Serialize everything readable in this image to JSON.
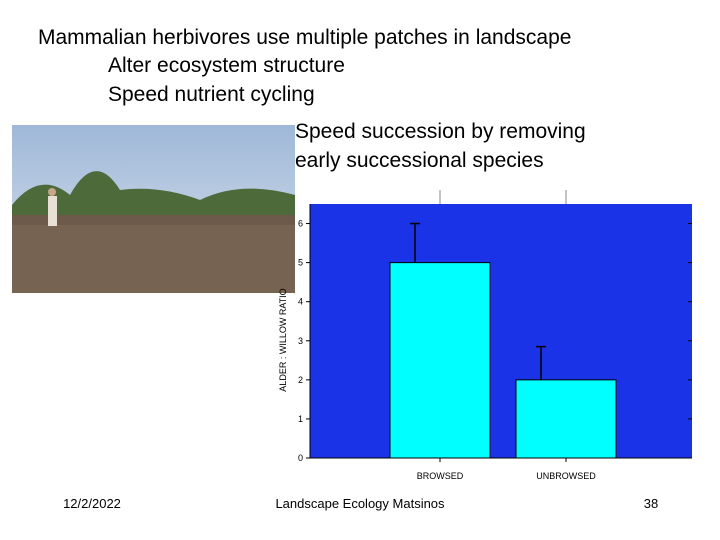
{
  "slide": {
    "title": "Mammalian herbivores use multiple patches in landscape",
    "bullets": [
      "Alter ecosystem structure",
      "Speed nutrient cycling"
    ],
    "subtext": [
      "Speed succession by removing",
      "early successional species"
    ],
    "footer": {
      "date": "12/2/2022",
      "center": "Landscape Ecology Matsinos",
      "page": "38"
    }
  },
  "chart_data": {
    "type": "bar",
    "y_label": "ALDER : WILLOW RATIO",
    "categories": [
      "BROWSED",
      "UNBROWSED"
    ],
    "values": [
      5,
      2
    ],
    "errors": [
      1,
      0.85
    ],
    "color": "#00ffff",
    "background": "#1a33e6",
    "ylim": [
      0,
      6.5
    ],
    "yticks": [
      0,
      1,
      2,
      3,
      4,
      5,
      6
    ]
  }
}
